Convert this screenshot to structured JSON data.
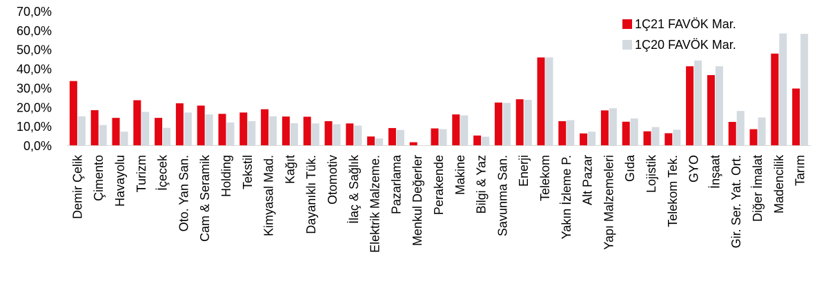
{
  "chart_data": {
    "type": "bar",
    "categories": [
      "Demir Çelik",
      "Çimento",
      "Havayolu",
      "Turizm",
      "İçecek",
      "Oto. Yan San.",
      "Cam & Seramik",
      "Holding",
      "Tekstil",
      "Kimyasal Mad.",
      "Kağıt",
      "Dayanıklı Tük.",
      "Otomotiv",
      "İlaç & Sağlık",
      "Elektrik Malzeme.",
      "Pazarlama",
      "Menkul Değerler",
      "Perakende",
      "Makine",
      "Bilgi & Yaz",
      "Savunma San.",
      "Enerji",
      "Telekom",
      "Yakın İzleme P.",
      "Alt Pazar",
      "Yapı Malzemeleri",
      "Gıda",
      "Lojistik",
      "Telekom Tek.",
      "GYO",
      "İnşaat",
      "Gir. Ser. Yat. Ort.",
      "Diğer İmalat",
      "Madencilik",
      "Tarım"
    ],
    "series": [
      {
        "name": "1Ç21 FAVÖK Mar.",
        "color": "#e30613",
        "values": [
          33.5,
          18.3,
          14.3,
          23.5,
          14.3,
          21.9,
          20.7,
          16.4,
          17.1,
          18.8,
          15.0,
          14.9,
          12.6,
          11.4,
          4.6,
          9.0,
          1.6,
          8.8,
          16.1,
          5.1,
          22.3,
          24.0,
          45.8,
          12.6,
          6.2,
          18.2,
          12.3,
          7.3,
          6.3,
          41.2,
          36.6,
          12.2,
          8.4,
          47.8,
          29.6
        ]
      },
      {
        "name": "1Ç20 FAVÖK Mar.",
        "color": "#d3dae0",
        "values": [
          15.1,
          10.6,
          7.1,
          17.4,
          9.1,
          17.1,
          16.1,
          11.9,
          12.6,
          15.1,
          11.5,
          11.4,
          11.0,
          10.3,
          3.6,
          8.0,
          0.0,
          8.4,
          15.6,
          4.5,
          22.1,
          23.7,
          45.8,
          13.1,
          7.1,
          19.3,
          14.0,
          9.5,
          8.1,
          44.2,
          41.2,
          17.9,
          14.5,
          58.3,
          58.1
        ]
      }
    ],
    "ylim": [
      0,
      70
    ],
    "yticks": [
      "0,0%",
      "10,0%",
      "20,0%",
      "30,0%",
      "40,0%",
      "50,0%",
      "60,0%",
      "70,0%"
    ],
    "legend_position": "top-right",
    "grid": false
  }
}
